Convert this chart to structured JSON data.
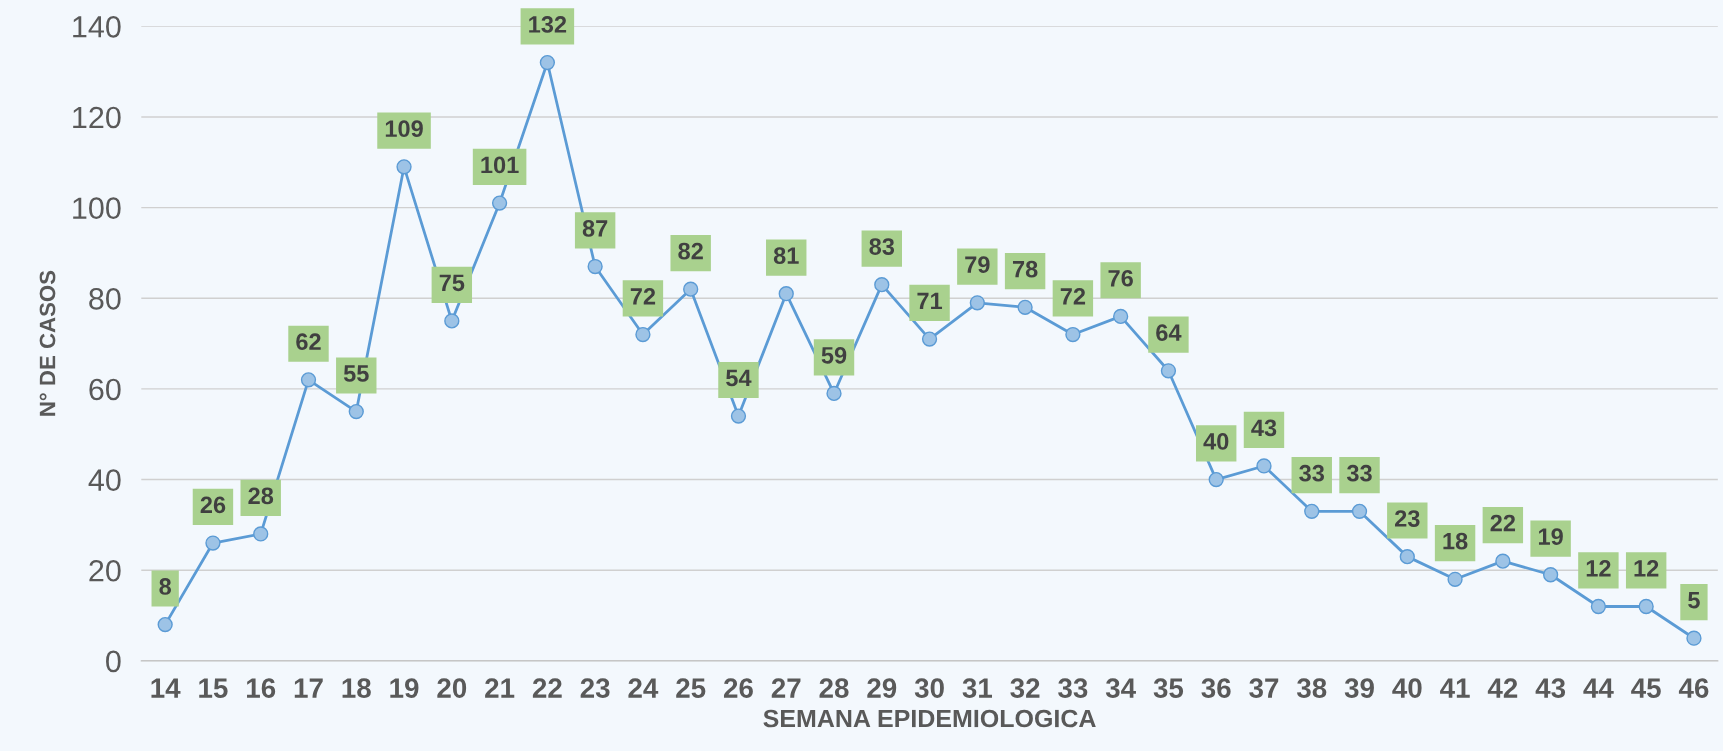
{
  "chart_data": {
    "type": "line",
    "xlabel": "SEMANA EPIDEMIOLOGICA",
    "ylabel": "N° DE CASOS",
    "categories": [
      "14",
      "15",
      "16",
      "17",
      "18",
      "19",
      "20",
      "21",
      "22",
      "23",
      "24",
      "25",
      "26",
      "27",
      "28",
      "29",
      "30",
      "31",
      "32",
      "33",
      "34",
      "35",
      "36",
      "37",
      "38",
      "39",
      "40",
      "41",
      "42",
      "43",
      "44",
      "45",
      "46"
    ],
    "series": [
      {
        "color": "#5b9bd5",
        "values": [
          8,
          26,
          28,
          62,
          55,
          109,
          75,
          101,
          132,
          87,
          72,
          82,
          54,
          81,
          59,
          83,
          71,
          79,
          78,
          72,
          76,
          64,
          40,
          43,
          33,
          33,
          23,
          18,
          22,
          19,
          12,
          12,
          5
        ]
      }
    ],
    "ylim": [
      0,
      140
    ],
    "yticks": [
      0,
      20,
      40,
      60,
      80,
      100,
      120,
      140
    ],
    "grid": "y",
    "marker": "circle",
    "data_labels": true
  }
}
